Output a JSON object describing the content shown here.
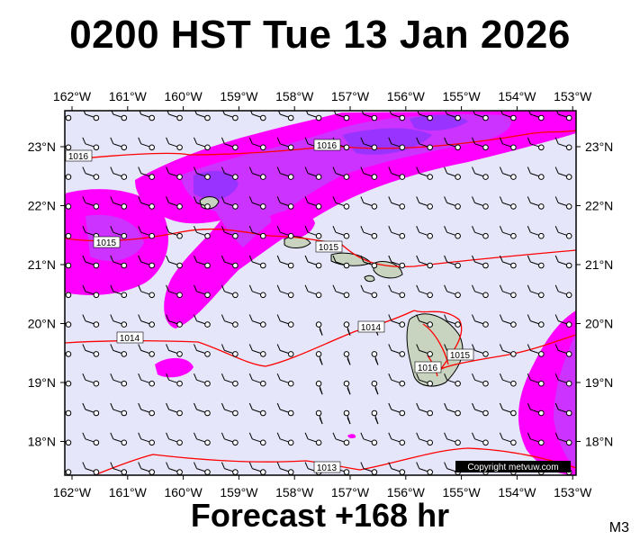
{
  "header": {
    "title": "0200 HST Tue 13 Jan 2026"
  },
  "footer": {
    "forecast_label": "Forecast +168 hr",
    "model_code": "M3"
  },
  "map": {
    "longitude_labels": [
      "162°W",
      "161°W",
      "160°W",
      "159°W",
      "158°W",
      "157°W",
      "156°W",
      "155°W",
      "154°W",
      "153°W"
    ],
    "latitude_labels": [
      "23°N",
      "22°N",
      "21°N",
      "20°N",
      "19°N",
      "18°N"
    ],
    "isobar_labels": [
      "1016",
      "1016",
      "1015",
      "1015",
      "1014",
      "1014",
      "1016",
      "1015",
      "1013"
    ],
    "copyright": "Copyright metvuw.com",
    "colors": {
      "background": "#e6e6fa",
      "precip_light": "#ff00ff",
      "precip_medium": "#cc33ff",
      "precip_heavy": "#9933ff",
      "isobar": "#ff0000",
      "land": "#c8d4c0"
    }
  }
}
